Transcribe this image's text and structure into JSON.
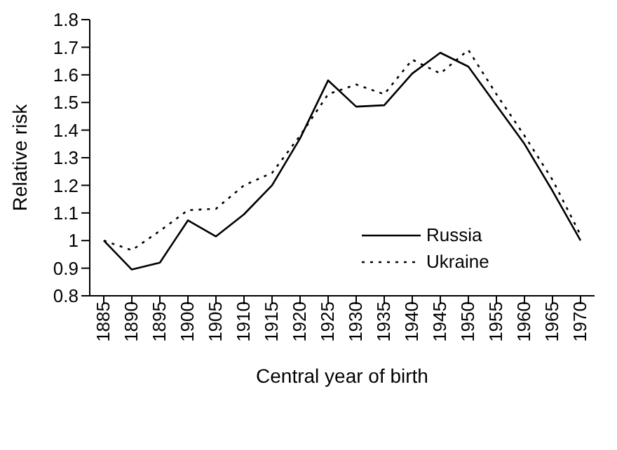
{
  "chart_data": {
    "type": "line",
    "xlabel": "Central year of birth",
    "ylabel": "Relative risk",
    "categories": [
      "1885",
      "1890",
      "1895",
      "1900",
      "1905",
      "1910",
      "1915",
      "1920",
      "1925",
      "1930",
      "1935",
      "1940",
      "1945",
      "1950",
      "1955",
      "1960",
      "1965",
      "1970"
    ],
    "series": [
      {
        "name": "Russia",
        "color": "#000000",
        "line_style": "solid",
        "values": [
          1.0,
          0.895,
          0.92,
          1.073,
          1.015,
          1.095,
          1.2,
          1.37,
          1.58,
          1.485,
          1.49,
          1.605,
          1.68,
          1.63,
          1.49,
          1.35,
          1.18,
          1.0
        ]
      },
      {
        "name": "Ukraine",
        "color": "#000000",
        "line_style": "dotted",
        "values": [
          1.0,
          0.965,
          1.035,
          1.11,
          1.115,
          1.2,
          1.245,
          1.38,
          1.53,
          1.565,
          1.53,
          1.655,
          1.605,
          1.69,
          1.53,
          1.38,
          1.22,
          1.02
        ]
      }
    ],
    "ylim": [
      0.8,
      1.8
    ],
    "yticks": [
      0.8,
      0.9,
      {
        "value": 1,
        "label": "1"
      },
      1.1,
      1.2,
      1.3,
      1.4,
      1.5,
      1.6,
      1.7,
      1.8
    ],
    "grid": false,
    "legend": "bottom right",
    "marker": "none"
  }
}
